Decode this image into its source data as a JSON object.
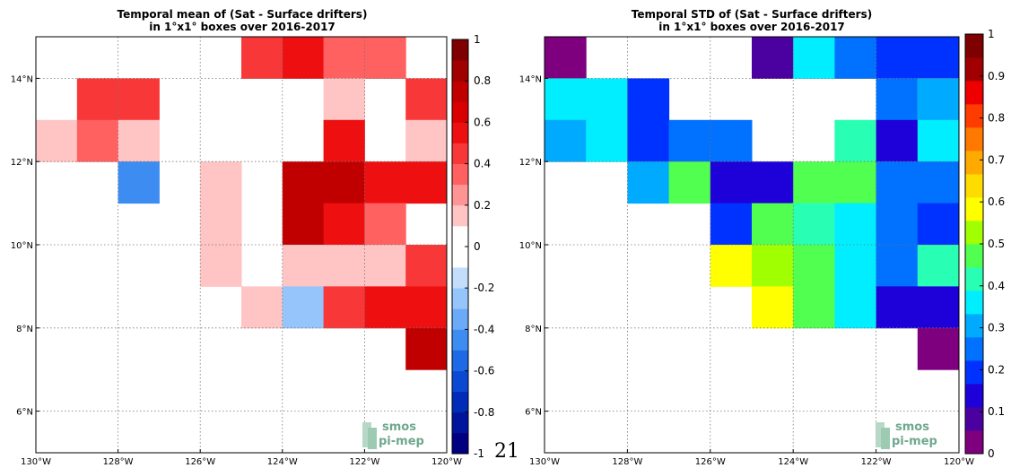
{
  "page_number": "21",
  "logo": {
    "line1": "smos",
    "line2": "pi-mep"
  },
  "chart_data": [
    {
      "type": "heatmap",
      "title_line1": "Temporal mean of (Sat - Surface drifters)",
      "title_line2": "in 1°x1° boxes over 2016-2017",
      "xlim": [
        -130,
        -120
      ],
      "ylim": [
        5,
        15
      ],
      "x_ticks": [
        {
          "value": -130,
          "label": "130°W"
        },
        {
          "value": -128,
          "label": "128°W"
        },
        {
          "value": -126,
          "label": "126°W"
        },
        {
          "value": -124,
          "label": "124°W"
        },
        {
          "value": -122,
          "label": "122°W"
        },
        {
          "value": -120,
          "label": "120°W"
        }
      ],
      "y_ticks": [
        {
          "value": 6,
          "label": "6°N"
        },
        {
          "value": 8,
          "label": "8°N"
        },
        {
          "value": 10,
          "label": "10°N"
        },
        {
          "value": 12,
          "label": "12°N"
        },
        {
          "value": 14,
          "label": "14°N"
        }
      ],
      "grid": true,
      "colorbar": {
        "range": [
          -1,
          1
        ],
        "ticks": [
          {
            "value": 1,
            "label": "1"
          },
          {
            "value": 0.8,
            "label": "0.8"
          },
          {
            "value": 0.6,
            "label": "0.6"
          },
          {
            "value": 0.4,
            "label": "0.4"
          },
          {
            "value": 0.2,
            "label": "0.2"
          },
          {
            "value": 0,
            "label": "0"
          },
          {
            "value": -0.2,
            "label": "-0.2"
          },
          {
            "value": -0.4,
            "label": "-0.4"
          },
          {
            "value": -0.6,
            "label": "-0.6"
          },
          {
            "value": -0.8,
            "label": "-0.8"
          },
          {
            "value": -1,
            "label": "-1"
          }
        ],
        "colors": [
          "#000080",
          "#00159b",
          "#002cb8",
          "#0a4ad3",
          "#1e6ae6",
          "#3c8cf2",
          "#6aaaf8",
          "#96c5fb",
          "#c3ddfd",
          "#ffffff",
          "#ffffff",
          "#ffc4c4",
          "#ff9494",
          "#ff6060",
          "#f83838",
          "#ee1010",
          "#d80000",
          "#c00000",
          "#a00000",
          "#7f0000"
        ]
      },
      "cells": [
        {
          "lon": -125,
          "lat": 14,
          "value": 0.42
        },
        {
          "lon": -124,
          "lat": 14,
          "value": 0.55
        },
        {
          "lon": -123,
          "lat": 14,
          "value": 0.3
        },
        {
          "lon": -122,
          "lat": 14,
          "value": 0.3
        },
        {
          "lon": -129,
          "lat": 13,
          "value": 0.42
        },
        {
          "lon": -128,
          "lat": 13,
          "value": 0.42
        },
        {
          "lon": -123,
          "lat": 13,
          "value": 0.18
        },
        {
          "lon": -121,
          "lat": 13,
          "value": 0.42
        },
        {
          "lon": -130,
          "lat": 12,
          "value": 0.18
        },
        {
          "lon": -129,
          "lat": 12,
          "value": 0.3
        },
        {
          "lon": -128,
          "lat": 12,
          "value": 0.18
        },
        {
          "lon": -123,
          "lat": 12,
          "value": 0.55
        },
        {
          "lon": -121,
          "lat": 12,
          "value": 0.18
        },
        {
          "lon": -128,
          "lat": 11,
          "value": -0.5
        },
        {
          "lon": -126,
          "lat": 11,
          "value": 0.18
        },
        {
          "lon": -124,
          "lat": 11,
          "value": 0.72
        },
        {
          "lon": -123,
          "lat": 11,
          "value": 0.72
        },
        {
          "lon": -122,
          "lat": 11,
          "value": 0.55
        },
        {
          "lon": -121,
          "lat": 11,
          "value": 0.55
        },
        {
          "lon": -126,
          "lat": 10,
          "value": 0.18
        },
        {
          "lon": -124,
          "lat": 10,
          "value": 0.72
        },
        {
          "lon": -123,
          "lat": 10,
          "value": 0.55
        },
        {
          "lon": -122,
          "lat": 10,
          "value": 0.3
        },
        {
          "lon": -126,
          "lat": 9,
          "value": 0.18
        },
        {
          "lon": -124,
          "lat": 9,
          "value": 0.18
        },
        {
          "lon": -123,
          "lat": 9,
          "value": 0.18
        },
        {
          "lon": -122,
          "lat": 9,
          "value": 0.18
        },
        {
          "lon": -121,
          "lat": 9,
          "value": 0.42
        },
        {
          "lon": -125,
          "lat": 8,
          "value": 0.18
        },
        {
          "lon": -124,
          "lat": 8,
          "value": -0.3
        },
        {
          "lon": -123,
          "lat": 8,
          "value": 0.42
        },
        {
          "lon": -122,
          "lat": 8,
          "value": 0.55
        },
        {
          "lon": -121,
          "lat": 8,
          "value": 0.55
        },
        {
          "lon": -121,
          "lat": 7,
          "value": 0.72
        }
      ]
    },
    {
      "type": "heatmap",
      "title_line1": "Temporal STD of (Sat - Surface drifters)",
      "title_line2": "in 1°x1° boxes over 2016-2017",
      "xlim": [
        -130,
        -120
      ],
      "ylim": [
        5,
        15
      ],
      "x_ticks": [
        {
          "value": -130,
          "label": "130°W"
        },
        {
          "value": -128,
          "label": "128°W"
        },
        {
          "value": -126,
          "label": "126°W"
        },
        {
          "value": -124,
          "label": "124°W"
        },
        {
          "value": -122,
          "label": "122°W"
        },
        {
          "value": -120,
          "label": "120°W"
        }
      ],
      "y_ticks": [
        {
          "value": 6,
          "label": "6°N"
        },
        {
          "value": 8,
          "label": "8°N"
        },
        {
          "value": 10,
          "label": "10°N"
        },
        {
          "value": 12,
          "label": "12°N"
        },
        {
          "value": 14,
          "label": "14°N"
        }
      ],
      "grid": true,
      "colorbar": {
        "range": [
          0,
          1
        ],
        "ticks": [
          {
            "value": 1,
            "label": "1"
          },
          {
            "value": 0.9,
            "label": "0.9"
          },
          {
            "value": 0.8,
            "label": "0.8"
          },
          {
            "value": 0.7,
            "label": "0.7"
          },
          {
            "value": 0.6,
            "label": "0.6"
          },
          {
            "value": 0.5,
            "label": "0.5"
          },
          {
            "value": 0.4,
            "label": "0.4"
          },
          {
            "value": 0.3,
            "label": "0.3"
          },
          {
            "value": 0.2,
            "label": "0.2"
          },
          {
            "value": 0.1,
            "label": "0.1"
          },
          {
            "value": 0,
            "label": "0"
          }
        ],
        "colors": [
          "#7f007f",
          "#4b00a0",
          "#1e00d8",
          "#0032ff",
          "#0072ff",
          "#00aaff",
          "#00eeff",
          "#28ffb4",
          "#50ff50",
          "#a0ff00",
          "#ffff00",
          "#ffdc00",
          "#ffaa00",
          "#ff7800",
          "#ff3c00",
          "#ee0000",
          "#a00000",
          "#7f0000"
        ]
      },
      "cells": [
        {
          "lon": -130,
          "lat": 14,
          "value": 0.02
        },
        {
          "lon": -125,
          "lat": 14,
          "value": 0.1
        },
        {
          "lon": -124,
          "lat": 14,
          "value": 0.38
        },
        {
          "lon": -123,
          "lat": 14,
          "value": 0.27
        },
        {
          "lon": -122,
          "lat": 14,
          "value": 0.2
        },
        {
          "lon": -121,
          "lat": 14,
          "value": 0.2
        },
        {
          "lon": -130,
          "lat": 13,
          "value": 0.38
        },
        {
          "lon": -129,
          "lat": 13,
          "value": 0.38
        },
        {
          "lon": -128,
          "lat": 13,
          "value": 0.2
        },
        {
          "lon": -122,
          "lat": 13,
          "value": 0.27
        },
        {
          "lon": -121,
          "lat": 13,
          "value": 0.49
        },
        {
          "lon": -120.99,
          "lat": 13,
          "value": 0.33
        },
        {
          "lon": -130,
          "lat": 12,
          "value": 0.33
        },
        {
          "lon": -129,
          "lat": 12,
          "value": 0.38
        },
        {
          "lon": -128,
          "lat": 12,
          "value": 0.2
        },
        {
          "lon": -127,
          "lat": 12,
          "value": 0.27
        },
        {
          "lon": -126,
          "lat": 12,
          "value": 0.27
        },
        {
          "lon": -123,
          "lat": 12,
          "value": 0.44
        },
        {
          "lon": -122,
          "lat": 12,
          "value": 0.16
        },
        {
          "lon": -121,
          "lat": 12,
          "value": 0.38
        },
        {
          "lon": -128,
          "lat": 11,
          "value": 0.33
        },
        {
          "lon": -127,
          "lat": 11,
          "value": 0.49
        },
        {
          "lon": -126,
          "lat": 11,
          "value": 0.16
        },
        {
          "lon": -125,
          "lat": 11,
          "value": 0.16
        },
        {
          "lon": -124,
          "lat": 11,
          "value": 0.49
        },
        {
          "lon": -123,
          "lat": 11,
          "value": 0.49
        },
        {
          "lon": -122,
          "lat": 11,
          "value": 0.27
        },
        {
          "lon": -121,
          "lat": 11,
          "value": 0.27
        },
        {
          "lon": -126,
          "lat": 10,
          "value": 0.2
        },
        {
          "lon": -125,
          "lat": 10,
          "value": 0.49
        },
        {
          "lon": -124,
          "lat": 10,
          "value": 0.44
        },
        {
          "lon": -123,
          "lat": 10,
          "value": 0.38
        },
        {
          "lon": -122,
          "lat": 10,
          "value": 0.27
        },
        {
          "lon": -121,
          "lat": 10,
          "value": 0.2
        },
        {
          "lon": -126,
          "lat": 9,
          "value": 0.61
        },
        {
          "lon": -125,
          "lat": 9,
          "value": 0.52
        },
        {
          "lon": -124,
          "lat": 9,
          "value": 0.49
        },
        {
          "lon": -123,
          "lat": 9,
          "value": 0.38
        },
        {
          "lon": -122,
          "lat": 9,
          "value": 0.27
        },
        {
          "lon": -121,
          "lat": 9,
          "value": 0.44
        },
        {
          "lon": -125,
          "lat": 8,
          "value": 0.61
        },
        {
          "lon": -124,
          "lat": 8,
          "value": 0.49
        },
        {
          "lon": -123,
          "lat": 8,
          "value": 0.38
        },
        {
          "lon": -122,
          "lat": 8,
          "value": 0.16
        },
        {
          "lon": -121,
          "lat": 8,
          "value": 0.16
        },
        {
          "lon": -121,
          "lat": 7,
          "value": 0.02
        }
      ]
    }
  ]
}
